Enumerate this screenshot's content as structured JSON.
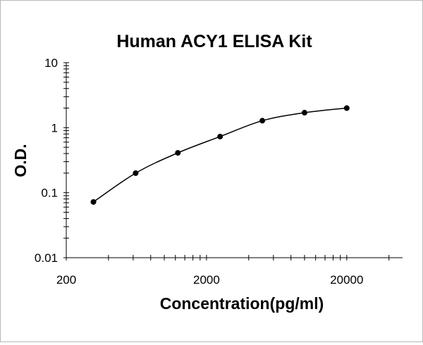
{
  "chart_data": {
    "type": "scatter",
    "title": "Human ACY1 ELISA Kit",
    "xlabel": "Concentration(pg/ml)",
    "ylabel": "O.D.",
    "x_scale": "log",
    "y_scale": "log",
    "xlim": [
      200,
      50000
    ],
    "ylim": [
      0.01,
      10
    ],
    "x_ticks": [
      {
        "value": 200,
        "label": "200"
      },
      {
        "value": 2000,
        "label": "2000"
      },
      {
        "value": 20000,
        "label": "20000"
      }
    ],
    "y_ticks": [
      {
        "value": 0.01,
        "label": "0.01"
      },
      {
        "value": 0.1,
        "label": "0.1"
      },
      {
        "value": 1,
        "label": "1"
      },
      {
        "value": 10,
        "label": "10"
      }
    ],
    "grid": false,
    "legend": "none",
    "series": [
      {
        "x": [
          312.5,
          625,
          1250,
          2500,
          5000,
          10000,
          20000
        ],
        "y": [
          0.072,
          0.2,
          0.41,
          0.73,
          1.28,
          1.7,
          2.0
        ],
        "marker": "circle",
        "fit_line": "smooth curve",
        "color": "#000000"
      }
    ]
  }
}
